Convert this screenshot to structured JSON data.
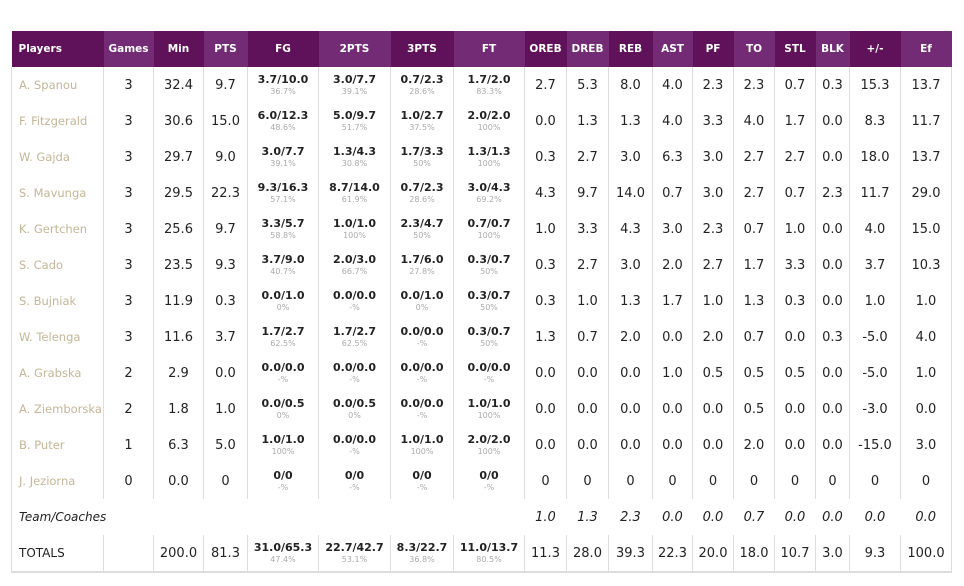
{
  "columns": [
    "Players",
    "Games",
    "Min",
    "PTS",
    "FG",
    "2PTS",
    "3PTS",
    "FT",
    "OREB",
    "DREB",
    "REB",
    "AST",
    "PF",
    "TO",
    "STL",
    "BLK",
    "+/-",
    "Ef"
  ],
  "colors": {
    "header_dark": "#5f1259",
    "header_light": "#722b74",
    "player_name": "#c4b697"
  },
  "players": [
    {
      "name": "A. Spanou",
      "games": "3",
      "min": "32.4",
      "pts": "9.7",
      "fg": [
        "3.7/10.0",
        "36.7%"
      ],
      "p2": [
        "3.0/7.7",
        "39.1%"
      ],
      "p3": [
        "0.7/2.3",
        "28.6%"
      ],
      "ft": [
        "1.7/2.0",
        "83.3%"
      ],
      "rest": [
        "2.7",
        "5.3",
        "8.0",
        "4.0",
        "2.3",
        "2.3",
        "0.7",
        "0.3",
        "15.3",
        "13.7"
      ]
    },
    {
      "name": "F. Fitzgerald",
      "games": "3",
      "min": "30.6",
      "pts": "15.0",
      "fg": [
        "6.0/12.3",
        "48.6%"
      ],
      "p2": [
        "5.0/9.7",
        "51.7%"
      ],
      "p3": [
        "1.0/2.7",
        "37.5%"
      ],
      "ft": [
        "2.0/2.0",
        "100%"
      ],
      "rest": [
        "0.0",
        "1.3",
        "1.3",
        "4.0",
        "3.3",
        "4.0",
        "1.7",
        "0.0",
        "8.3",
        "11.7"
      ]
    },
    {
      "name": "W. Gajda",
      "games": "3",
      "min": "29.7",
      "pts": "9.0",
      "fg": [
        "3.0/7.7",
        "39.1%"
      ],
      "p2": [
        "1.3/4.3",
        "30.8%"
      ],
      "p3": [
        "1.7/3.3",
        "50%"
      ],
      "ft": [
        "1.3/1.3",
        "100%"
      ],
      "rest": [
        "0.3",
        "2.7",
        "3.0",
        "6.3",
        "3.0",
        "2.7",
        "2.7",
        "0.0",
        "18.0",
        "13.7"
      ]
    },
    {
      "name": "S. Mavunga",
      "games": "3",
      "min": "29.5",
      "pts": "22.3",
      "fg": [
        "9.3/16.3",
        "57.1%"
      ],
      "p2": [
        "8.7/14.0",
        "61.9%"
      ],
      "p3": [
        "0.7/2.3",
        "28.6%"
      ],
      "ft": [
        "3.0/4.3",
        "69.2%"
      ],
      "rest": [
        "4.3",
        "9.7",
        "14.0",
        "0.7",
        "3.0",
        "2.7",
        "0.7",
        "2.3",
        "11.7",
        "29.0"
      ]
    },
    {
      "name": "K. Gertchen",
      "games": "3",
      "min": "25.6",
      "pts": "9.7",
      "fg": [
        "3.3/5.7",
        "58.8%"
      ],
      "p2": [
        "1.0/1.0",
        "100%"
      ],
      "p3": [
        "2.3/4.7",
        "50%"
      ],
      "ft": [
        "0.7/0.7",
        "100%"
      ],
      "rest": [
        "1.0",
        "3.3",
        "4.3",
        "3.0",
        "2.3",
        "0.7",
        "1.0",
        "0.0",
        "4.0",
        "15.0"
      ]
    },
    {
      "name": "S. Cado",
      "games": "3",
      "min": "23.5",
      "pts": "9.3",
      "fg": [
        "3.7/9.0",
        "40.7%"
      ],
      "p2": [
        "2.0/3.0",
        "66.7%"
      ],
      "p3": [
        "1.7/6.0",
        "27.8%"
      ],
      "ft": [
        "0.3/0.7",
        "50%"
      ],
      "rest": [
        "0.3",
        "2.7",
        "3.0",
        "2.0",
        "2.7",
        "1.7",
        "3.3",
        "0.0",
        "3.7",
        "10.3"
      ]
    },
    {
      "name": "S. Bujniak",
      "games": "3",
      "min": "11.9",
      "pts": "0.3",
      "fg": [
        "0.0/1.0",
        "0%"
      ],
      "p2": [
        "0.0/0.0",
        "-%"
      ],
      "p3": [
        "0.0/1.0",
        "0%"
      ],
      "ft": [
        "0.3/0.7",
        "50%"
      ],
      "rest": [
        "0.3",
        "1.0",
        "1.3",
        "1.7",
        "1.0",
        "1.3",
        "0.3",
        "0.0",
        "1.0",
        "1.0"
      ]
    },
    {
      "name": "W. Telenga",
      "games": "3",
      "min": "11.6",
      "pts": "3.7",
      "fg": [
        "1.7/2.7",
        "62.5%"
      ],
      "p2": [
        "1.7/2.7",
        "62.5%"
      ],
      "p3": [
        "0.0/0.0",
        "-%"
      ],
      "ft": [
        "0.3/0.7",
        "50%"
      ],
      "rest": [
        "1.3",
        "0.7",
        "2.0",
        "0.0",
        "2.0",
        "0.7",
        "0.0",
        "0.3",
        "-5.0",
        "4.0"
      ]
    },
    {
      "name": "A. Grabska",
      "games": "2",
      "min": "2.9",
      "pts": "0.0",
      "fg": [
        "0.0/0.0",
        "-%"
      ],
      "p2": [
        "0.0/0.0",
        "-%"
      ],
      "p3": [
        "0.0/0.0",
        "-%"
      ],
      "ft": [
        "0.0/0.0",
        "-%"
      ],
      "rest": [
        "0.0",
        "0.0",
        "0.0",
        "1.0",
        "0.5",
        "0.5",
        "0.5",
        "0.0",
        "-5.0",
        "1.0"
      ]
    },
    {
      "name": "A. Ziemborska",
      "games": "2",
      "min": "1.8",
      "pts": "1.0",
      "fg": [
        "0.0/0.5",
        "0%"
      ],
      "p2": [
        "0.0/0.5",
        "0%"
      ],
      "p3": [
        "0.0/0.0",
        "-%"
      ],
      "ft": [
        "1.0/1.0",
        "100%"
      ],
      "rest": [
        "0.0",
        "0.0",
        "0.0",
        "0.0",
        "0.0",
        "0.5",
        "0.0",
        "0.0",
        "-3.0",
        "0.0"
      ]
    },
    {
      "name": "B. Puter",
      "games": "1",
      "min": "6.3",
      "pts": "5.0",
      "fg": [
        "1.0/1.0",
        "100%"
      ],
      "p2": [
        "0.0/0.0",
        "-%"
      ],
      "p3": [
        "1.0/1.0",
        "100%"
      ],
      "ft": [
        "2.0/2.0",
        "100%"
      ],
      "rest": [
        "0.0",
        "0.0",
        "0.0",
        "0.0",
        "0.0",
        "2.0",
        "0.0",
        "0.0",
        "-15.0",
        "3.0"
      ]
    },
    {
      "name": "J. Jeziorna",
      "games": "0",
      "min": "0.0",
      "pts": "0",
      "fg": [
        "0/0",
        "-%"
      ],
      "p2": [
        "0/0",
        "-%"
      ],
      "p3": [
        "0/0",
        "-%"
      ],
      "ft": [
        "0/0",
        "-%"
      ],
      "rest": [
        "0",
        "0",
        "0",
        "0",
        "0",
        "0",
        "0",
        "0",
        "0",
        "0"
      ]
    }
  ],
  "team": {
    "label": "Team/Coaches",
    "rest": [
      "1.0",
      "1.3",
      "2.3",
      "0.0",
      "0.0",
      "0.7",
      "0.0",
      "0.0",
      "0.0",
      "0.0"
    ]
  },
  "totals": {
    "label": "TOTALS",
    "games": "",
    "min": "200.0",
    "pts": "81.3",
    "fg": [
      "31.0/65.3",
      "47.4%"
    ],
    "p2": [
      "22.7/42.7",
      "53.1%"
    ],
    "p3": [
      "8.3/22.7",
      "36.8%"
    ],
    "ft": [
      "11.0/13.7",
      "80.5%"
    ],
    "rest": [
      "11.3",
      "28.0",
      "39.3",
      "22.3",
      "20.0",
      "18.0",
      "10.7",
      "3.0",
      "9.3",
      "100.0"
    ]
  }
}
